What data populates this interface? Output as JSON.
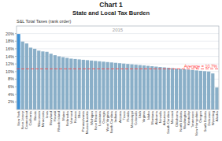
{
  "chart_data": {
    "type": "bar",
    "title": "Chart 1",
    "subtitle": "State and Local Tax Burden",
    "annotations": [
      "S&L Total Taxes (rank order)",
      "2015"
    ],
    "reference_line": {
      "value": 0.107,
      "label": "Average = 10.7%",
      "color": "#ff4040"
    },
    "categories": [
      "New York",
      "New Jersey",
      "Connecticut",
      "California",
      "Illinois",
      "Wisconsin",
      "Minnesota",
      "Iowa",
      "Maryland",
      "Hawaii",
      "Rhode Island",
      "Maine",
      "Nebraska",
      "Vermont",
      "Kansas",
      "Ohio",
      "Pennsylvania",
      "Massachusetts",
      "Michigan",
      "New Mexico",
      "Louisiana",
      "Georgia",
      "West Virginia",
      "North Carolina",
      "Indiana",
      "Arizona",
      "Texas",
      "Florida",
      "Mississippi",
      "Colorado",
      "Utah",
      "Virginia",
      "Idaho",
      "Montana",
      "Alabama",
      "Nevada",
      "Arkansas",
      "South Carolina",
      "Missouri",
      "Oklahoma",
      "North Dakota",
      "Washington",
      "Kentucky",
      "Tennessee",
      "New Hampshire",
      "Oregon",
      "South Dakota",
      "Delaware",
      "Wyoming",
      "Alaska"
    ],
    "values": [
      0.199,
      0.179,
      0.174,
      0.163,
      0.16,
      0.155,
      0.153,
      0.152,
      0.147,
      0.143,
      0.14,
      0.138,
      0.136,
      0.134,
      0.133,
      0.132,
      0.131,
      0.13,
      0.129,
      0.128,
      0.127,
      0.126,
      0.125,
      0.124,
      0.123,
      0.122,
      0.121,
      0.12,
      0.119,
      0.118,
      0.117,
      0.116,
      0.115,
      0.114,
      0.113,
      0.112,
      0.111,
      0.11,
      0.109,
      0.108,
      0.107,
      0.106,
      0.105,
      0.104,
      0.103,
      0.102,
      0.101,
      0.1,
      0.095,
      0.058
    ],
    "colors": [
      "#3b8fd4",
      "#8aafc8",
      "#8aafc8",
      "#8aafc8",
      "#8aafc8",
      "#8aafc8",
      "#8aafc8",
      "#8aafc8",
      "#8aafc8",
      "#8aafc8",
      "#8aafc8",
      "#8aafc8",
      "#8aafc8",
      "#8aafc8",
      "#8aafc8",
      "#8aafc8",
      "#8aafc8",
      "#8aafc8",
      "#8aafc8",
      "#8aafc8",
      "#8aafc8",
      "#8aafc8",
      "#8aafc8",
      "#8aafc8",
      "#8aafc8",
      "#8aafc8",
      "#8aafc8",
      "#8aafc8",
      "#8aafc8",
      "#8aafc8",
      "#8aafc8",
      "#8aafc8",
      "#8aafc8",
      "#8aafc8",
      "#8aafc8",
      "#8aafc8",
      "#8aafc8",
      "#8aafc8",
      "#8aafc8",
      "#8aafc8",
      "#8aafc8",
      "#8aafc8",
      "#8aafc8",
      "#8aafc8",
      "#8aafc8",
      "#8aafc8",
      "#8aafc8",
      "#8aafc8",
      "#8aafc8",
      "#8aafc8"
    ],
    "ylim": [
      0,
      0.22
    ],
    "yticks": [
      {
        "value": 0.02,
        "label": "2%"
      },
      {
        "value": 0.04,
        "label": "4%"
      },
      {
        "value": 0.06,
        "label": "6%"
      },
      {
        "value": 0.08,
        "label": "8%"
      },
      {
        "value": 0.1,
        "label": "10%"
      },
      {
        "value": 0.12,
        "label": "12%"
      },
      {
        "value": 0.14,
        "label": "14%"
      },
      {
        "value": 0.16,
        "label": "16%"
      },
      {
        "value": 0.18,
        "label": "18%"
      },
      {
        "value": 0.2,
        "label": "20%"
      }
    ],
    "grid": true
  }
}
